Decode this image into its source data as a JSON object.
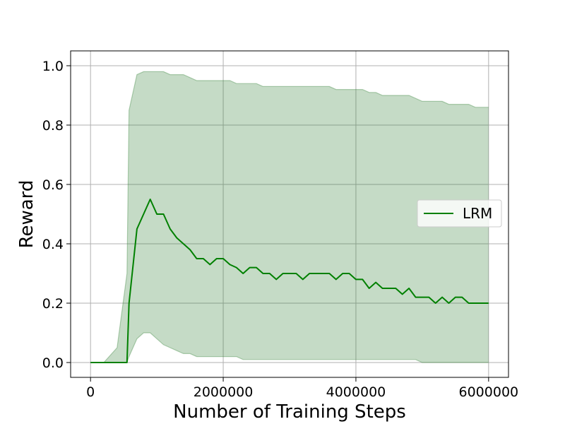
{
  "chart_data": {
    "type": "line",
    "title": "",
    "xlabel": "Number of Training Steps",
    "ylabel": "Reward",
    "xlim": [
      -300000,
      6300000
    ],
    "ylim": [
      -0.05,
      1.05
    ],
    "x_ticks": [
      0,
      2000000,
      4000000,
      6000000
    ],
    "x_tick_labels": [
      "0",
      "2000000",
      "4000000",
      "6000000"
    ],
    "y_ticks": [
      0.0,
      0.2,
      0.4,
      0.6,
      0.8,
      1.0
    ],
    "y_tick_labels": [
      "0.0",
      "0.2",
      "0.4",
      "0.6",
      "0.8",
      "1.0"
    ],
    "grid": true,
    "legend_position": "center-right",
    "series": [
      {
        "name": "LRM",
        "color": "#008000",
        "band_color": "#2e7d32",
        "x": [
          0,
          200000,
          400000,
          550000,
          580000,
          700000,
          800000,
          900000,
          1000000,
          1100000,
          1200000,
          1300000,
          1400000,
          1500000,
          1600000,
          1700000,
          1800000,
          1900000,
          2000000,
          2100000,
          2200000,
          2300000,
          2400000,
          2500000,
          2600000,
          2700000,
          2800000,
          2900000,
          3000000,
          3100000,
          3200000,
          3300000,
          3400000,
          3500000,
          3600000,
          3700000,
          3800000,
          3900000,
          4000000,
          4100000,
          4200000,
          4300000,
          4400000,
          4500000,
          4600000,
          4700000,
          4800000,
          4900000,
          5000000,
          5100000,
          5200000,
          5300000,
          5400000,
          5500000,
          5600000,
          5700000,
          5800000,
          5900000,
          6000000
        ],
        "mean": [
          0.0,
          0.0,
          0.0,
          0.0,
          0.2,
          0.45,
          0.5,
          0.55,
          0.5,
          0.5,
          0.45,
          0.42,
          0.4,
          0.38,
          0.35,
          0.35,
          0.33,
          0.35,
          0.35,
          0.33,
          0.32,
          0.3,
          0.32,
          0.32,
          0.3,
          0.3,
          0.28,
          0.3,
          0.3,
          0.3,
          0.28,
          0.3,
          0.3,
          0.3,
          0.3,
          0.28,
          0.3,
          0.3,
          0.28,
          0.28,
          0.25,
          0.27,
          0.25,
          0.25,
          0.25,
          0.23,
          0.25,
          0.22,
          0.22,
          0.22,
          0.2,
          0.22,
          0.2,
          0.22,
          0.22,
          0.2,
          0.2,
          0.2,
          0.2
        ],
        "lower": [
          0.0,
          0.0,
          0.0,
          0.0,
          0.02,
          0.08,
          0.1,
          0.1,
          0.08,
          0.06,
          0.05,
          0.04,
          0.03,
          0.03,
          0.02,
          0.02,
          0.02,
          0.02,
          0.02,
          0.02,
          0.02,
          0.01,
          0.01,
          0.01,
          0.01,
          0.01,
          0.01,
          0.01,
          0.01,
          0.01,
          0.01,
          0.01,
          0.01,
          0.01,
          0.01,
          0.01,
          0.01,
          0.01,
          0.01,
          0.01,
          0.01,
          0.01,
          0.01,
          0.01,
          0.01,
          0.01,
          0.01,
          0.01,
          0.0,
          0.0,
          0.0,
          0.0,
          0.0,
          0.0,
          0.0,
          0.0,
          0.0,
          0.0,
          0.0
        ],
        "upper": [
          0.0,
          0.0,
          0.05,
          0.3,
          0.85,
          0.97,
          0.98,
          0.98,
          0.98,
          0.98,
          0.97,
          0.97,
          0.97,
          0.96,
          0.95,
          0.95,
          0.95,
          0.95,
          0.95,
          0.95,
          0.94,
          0.94,
          0.94,
          0.94,
          0.93,
          0.93,
          0.93,
          0.93,
          0.93,
          0.93,
          0.93,
          0.93,
          0.93,
          0.93,
          0.93,
          0.92,
          0.92,
          0.92,
          0.92,
          0.92,
          0.91,
          0.91,
          0.9,
          0.9,
          0.9,
          0.9,
          0.9,
          0.89,
          0.88,
          0.88,
          0.88,
          0.88,
          0.87,
          0.87,
          0.87,
          0.87,
          0.86,
          0.86,
          0.86
        ]
      }
    ]
  }
}
